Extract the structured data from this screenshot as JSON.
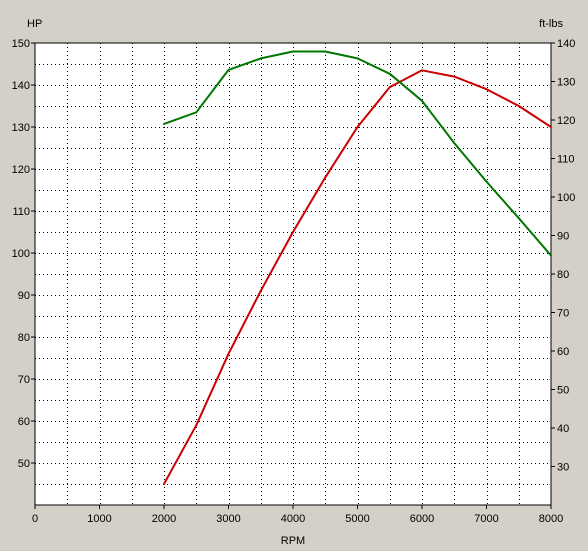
{
  "chart_data": {
    "type": "line",
    "title": "",
    "xlabel": "RPM",
    "ylabel_left": "HP",
    "ylabel_right": "ft-lbs",
    "xlim": [
      0,
      8000
    ],
    "ylim_left": [
      40,
      150
    ],
    "ylim_right": [
      20,
      140
    ],
    "x_ticks": [
      "0",
      "1000",
      "2000",
      "3000",
      "4000",
      "5000",
      "6000",
      "7000",
      "8000"
    ],
    "y_left_ticks": [
      "50",
      "60",
      "70",
      "80",
      "90",
      "100",
      "110",
      "120",
      "130",
      "140",
      "150"
    ],
    "y_right_ticks": [
      "30",
      "40",
      "50",
      "60",
      "70",
      "80",
      "90",
      "100",
      "110",
      "120",
      "130",
      "140"
    ],
    "grid": true,
    "background": "#ffffff",
    "frame_color": "#d4d0c8",
    "series": [
      {
        "axis": "left",
        "color": "#cc0000",
        "x": [
          2000,
          2500,
          3000,
          3500,
          4000,
          4500,
          5000,
          5500,
          6000,
          6500,
          7000,
          7500,
          8000
        ],
        "values": [
          45,
          59,
          76,
          91,
          105,
          118,
          130,
          139.5,
          143.5,
          142,
          139,
          135,
          130
        ]
      },
      {
        "axis": "right",
        "color": "#007700",
        "x": [
          2000,
          2500,
          3000,
          3500,
          4000,
          4500,
          5000,
          5500,
          6000,
          6500,
          7000,
          7500,
          8000
        ],
        "values": [
          119,
          122,
          133,
          136,
          137.8,
          137.8,
          136,
          132,
          125,
          114,
          104,
          94.5,
          84.8
        ]
      }
    ]
  }
}
